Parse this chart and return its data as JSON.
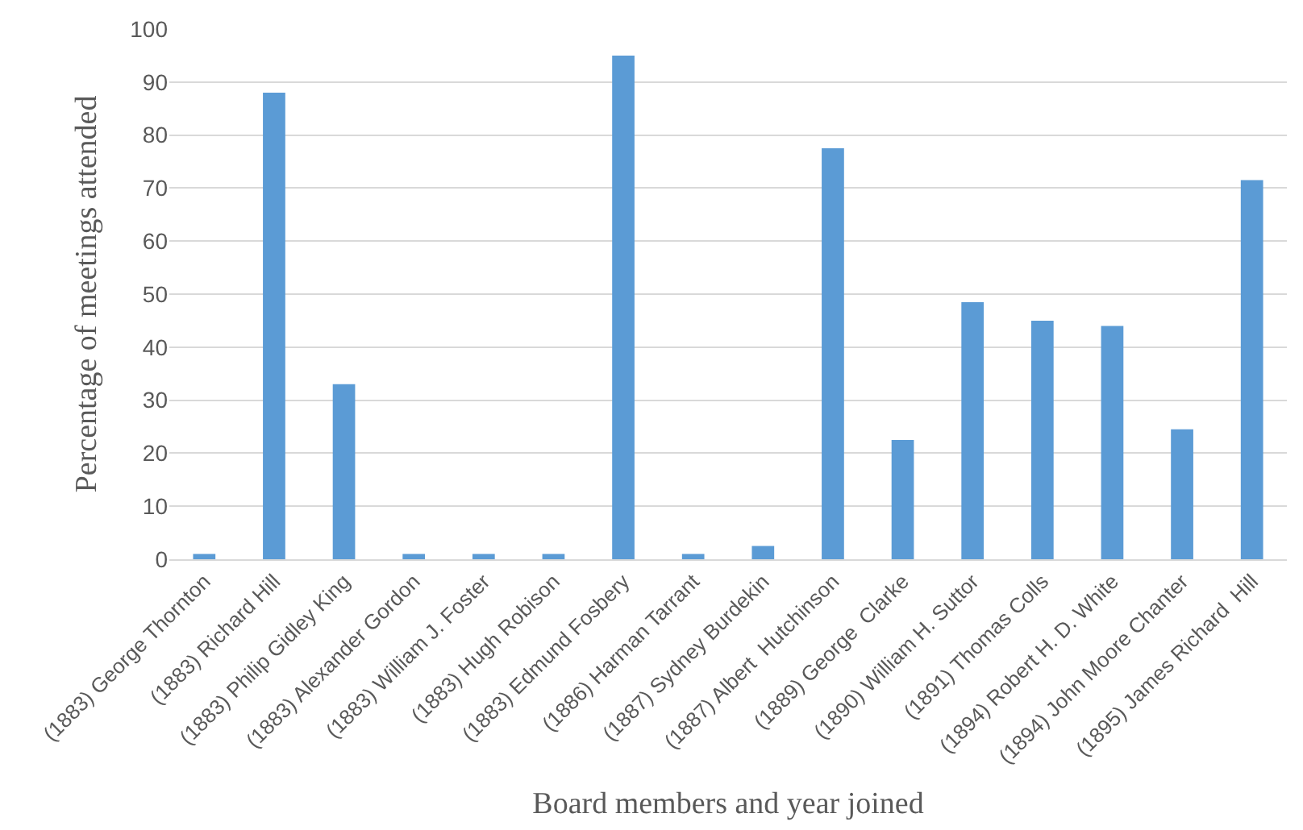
{
  "chart_data": {
    "type": "bar",
    "xlabel": "Board members and year joined",
    "ylabel": "Percentage of meetings attended",
    "categories": [
      "(1883) George Thornton",
      "(1883) Richard Hill",
      "(1883) Philip Gidley King",
      "(1883) Alexander Gordon",
      "(1883) William J. Foster",
      "(1883) Hugh Robison",
      "(1883) Edmund Fosbery",
      "(1886) Harman Tarrant",
      "(1887) Sydney Burdekin",
      "(1887) Albert  Hutchinson",
      "(1889) George  Clarke",
      "(1890) William H. Suttor",
      "(1891) Thomas Colls",
      "(1894) Robert H. D. White",
      "(1894) John Moore Chanter",
      "(1895) James Richard  Hill"
    ],
    "values": [
      1,
      88,
      33,
      1,
      1,
      1,
      95,
      1,
      2.5,
      77.5,
      22.5,
      48.5,
      45,
      44,
      24.5,
      71.5
    ],
    "color": "#5b9bd5",
    "ylim": [
      0,
      100
    ],
    "yticks": [
      0,
      10,
      20,
      30,
      40,
      50,
      60,
      70,
      80,
      90,
      100
    ],
    "grid": "y"
  }
}
